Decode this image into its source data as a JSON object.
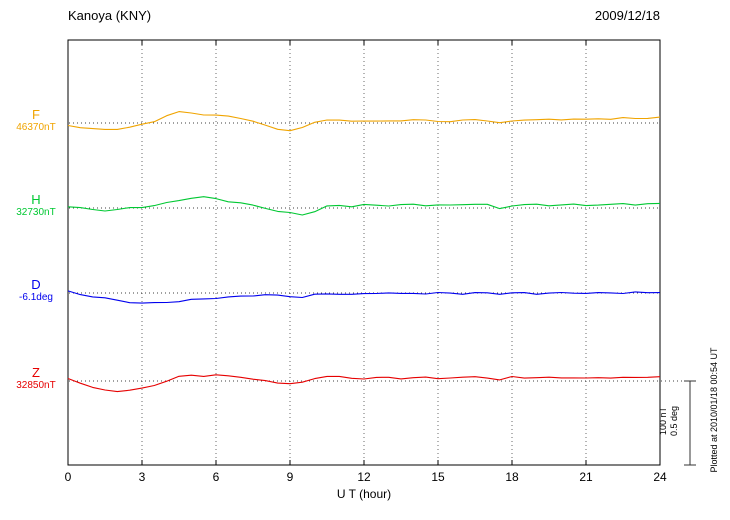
{
  "header": {
    "title": "Kanoya (KNY)",
    "date": "2009/12/18"
  },
  "xaxis": {
    "label": "U T (hour)",
    "min": 0,
    "max": 24,
    "ticks": [
      0,
      3,
      6,
      9,
      12,
      15,
      18,
      21,
      24
    ]
  },
  "scale_bar": {
    "line1": "100 nT",
    "line2": "0.5 deg"
  },
  "plotted_at": "Plotted at 2010/01/18 00:54 UT",
  "chart_data": {
    "type": "line",
    "title": "Kanoya (KNY) magnetogram 2009/12/18",
    "xlabel": "U T (hour)",
    "xlim": [
      0,
      24
    ],
    "grid": "dotted vertical every 3 hours, dotted baseline per trace",
    "x_start_hour": 0,
    "x_step_hours": 0.5,
    "scale": {
      "nT_per_div": 100,
      "deg_per_div": 0.5
    },
    "series": [
      {
        "name": "F",
        "baseline_label": "46370nT",
        "units": "nT",
        "color": "#f0a400",
        "values": [
          -3,
          -5,
          -7,
          -8,
          -7,
          -5,
          -2,
          2,
          9,
          13,
          12,
          10,
          9,
          8,
          6,
          2,
          -3,
          -7,
          -9,
          -6,
          1,
          4,
          3,
          2,
          3,
          2,
          2,
          3,
          4,
          3,
          2,
          2,
          3,
          4,
          3,
          0,
          2,
          4,
          4,
          4,
          4,
          5,
          4,
          5,
          5,
          6,
          5,
          6,
          7
        ]
      },
      {
        "name": "H",
        "baseline_label": "32730nT",
        "units": "nT",
        "color": "#00c832",
        "values": [
          2,
          0,
          -2,
          -3,
          -2,
          0,
          1,
          3,
          6,
          9,
          12,
          13,
          11,
          8,
          6,
          3,
          0,
          -4,
          -6,
          -8,
          -4,
          2,
          3,
          2,
          4,
          3,
          3,
          4,
          4,
          3,
          4,
          3,
          4,
          5,
          4,
          -1,
          3,
          4,
          4,
          3,
          4,
          4,
          3,
          4,
          4,
          5,
          4,
          5,
          5
        ]
      },
      {
        "name": "D",
        "baseline_label": "-6.1deg",
        "units": "deg",
        "color": "#0000ee",
        "values": [
          0.01,
          -0.01,
          -0.02,
          -0.03,
          -0.045,
          -0.055,
          -0.06,
          -0.06,
          -0.055,
          -0.05,
          -0.04,
          -0.035,
          -0.03,
          -0.025,
          -0.02,
          -0.015,
          -0.01,
          -0.015,
          -0.02,
          -0.025,
          -0.01,
          -0.005,
          -0.005,
          -0.01,
          -0.005,
          0,
          0,
          -0.005,
          0,
          -0.005,
          0,
          0,
          -0.005,
          0,
          0,
          -0.005,
          0,
          0,
          -0.005,
          0,
          0,
          0,
          0,
          0,
          0,
          0,
          0.005,
          0,
          0.005
        ]
      },
      {
        "name": "Z",
        "baseline_label": "32850nT",
        "units": "nT",
        "color": "#e60000",
        "values": [
          3,
          -2,
          -8,
          -11,
          -12,
          -11,
          -9,
          -5,
          0,
          5,
          7,
          6,
          7,
          6,
          5,
          2,
          0,
          -2,
          -3,
          -2,
          3,
          6,
          5,
          3,
          3,
          4,
          4,
          3,
          4,
          4,
          3,
          4,
          4,
          5,
          4,
          1,
          5,
          4,
          4,
          4,
          4,
          4,
          3,
          4,
          4,
          4,
          4,
          5,
          5
        ]
      }
    ]
  }
}
